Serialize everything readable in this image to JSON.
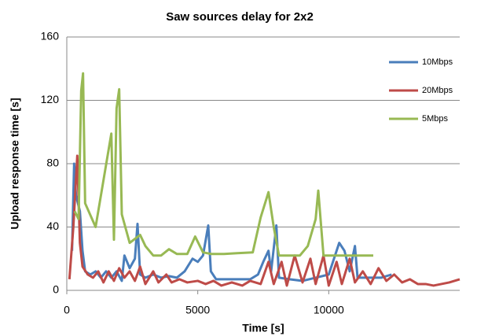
{
  "chart_data": {
    "type": "line",
    "title": "Saw sources delay for 2x2",
    "x_label": "Time [s]",
    "y_label": "Upload response time [s]",
    "xlim": [
      0,
      15000
    ],
    "xticks": [
      0,
      5000,
      10000
    ],
    "ylim": [
      0,
      160
    ],
    "yticks": [
      0,
      40,
      80,
      120,
      160
    ],
    "grid": true,
    "legend": "upper right",
    "series": [
      {
        "name": "10Mbps",
        "color": "#4a7ebb",
        "x": [
          200,
          280,
          350,
          500,
          600,
          700,
          900,
          1100,
          1300,
          1500,
          1700,
          1900,
          2100,
          2200,
          2400,
          2600,
          2700,
          2800,
          3000,
          3300,
          3600,
          3900,
          4200,
          4500,
          4800,
          5000,
          5200,
          5400,
          5500,
          5700,
          6000,
          6500,
          7000,
          7300,
          7500,
          7700,
          7800,
          8000,
          8100,
          8500,
          9000,
          9500,
          10000,
          10400,
          10600,
          10800,
          11000,
          11100,
          11500,
          12000,
          12400
        ],
        "values": [
          25,
          80,
          60,
          50,
          25,
          12,
          10,
          12,
          8,
          12,
          8,
          12,
          6,
          22,
          14,
          20,
          42,
          10,
          8,
          10,
          8,
          9,
          8,
          12,
          20,
          18,
          22,
          41,
          12,
          7,
          7,
          7,
          7,
          10,
          18,
          25,
          12,
          41,
          8,
          7,
          6,
          8,
          10,
          30,
          25,
          12,
          28,
          8,
          8,
          8,
          10
        ]
      },
      {
        "name": "20Mbps",
        "color": "#be4b48",
        "x": [
          100,
          250,
          400,
          500,
          600,
          800,
          1000,
          1200,
          1400,
          1600,
          1800,
          2000,
          2200,
          2400,
          2600,
          2800,
          3000,
          3300,
          3500,
          3800,
          4000,
          4300,
          4600,
          5000,
          5300,
          5600,
          5900,
          6300,
          6700,
          7000,
          7400,
          7700,
          7900,
          8200,
          8400,
          8700,
          9000,
          9300,
          9500,
          9800,
          10000,
          10300,
          10500,
          10800,
          11000,
          11300,
          11600,
          11900,
          12200,
          12500,
          12800,
          13100,
          13400,
          13700,
          14000,
          14300,
          14600,
          15000
        ],
        "values": [
          7,
          40,
          85,
          30,
          15,
          10,
          8,
          12,
          5,
          12,
          6,
          14,
          8,
          12,
          6,
          15,
          4,
          12,
          5,
          10,
          5,
          7,
          5,
          6,
          4,
          6,
          3,
          5,
          3,
          6,
          4,
          18,
          4,
          18,
          3,
          22,
          5,
          20,
          4,
          22,
          3,
          18,
          4,
          20,
          5,
          12,
          4,
          14,
          6,
          10,
          5,
          7,
          4,
          4,
          3,
          4,
          5,
          7
        ]
      },
      {
        "name": "5Mbps",
        "color": "#98b954",
        "x": [
          300,
          450,
          550,
          620,
          700,
          1100,
          1700,
          1800,
          1900,
          2000,
          2100,
          2400,
          2800,
          3000,
          3300,
          3600,
          3900,
          4200,
          4600,
          4900,
          5200,
          5500,
          6000,
          6500,
          7100,
          7400,
          7700,
          7900,
          8100,
          8500,
          8900,
          9200,
          9500,
          9600,
          9800,
          10200,
          10700,
          11200,
          11700
        ],
        "values": [
          50,
          45,
          126,
          137,
          55,
          40,
          99,
          32,
          115,
          127,
          48,
          30,
          35,
          28,
          22,
          22,
          26,
          23,
          23,
          34,
          24,
          23,
          23,
          23.5,
          24,
          46,
          62,
          40,
          22,
          22,
          22,
          28,
          45,
          63,
          22,
          22,
          22,
          22,
          22
        ]
      }
    ]
  }
}
